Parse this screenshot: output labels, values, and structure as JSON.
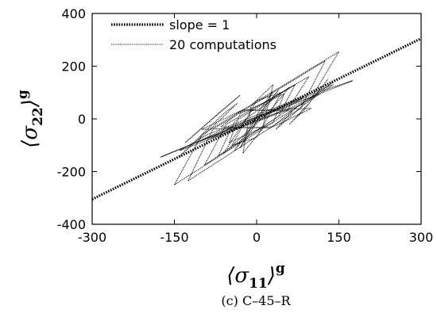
{
  "chart_data": {
    "type": "line",
    "xlabel": {
      "main": "⟨σ",
      "sub": "11",
      "close": "⟩",
      "sup": "g"
    },
    "ylabel": {
      "main": "⟨σ",
      "sub": "22",
      "close": "⟩",
      "sup": "g"
    },
    "xlim": [
      -300,
      300
    ],
    "ylim": [
      -400,
      400
    ],
    "xticks": [
      "-300",
      "-150",
      "0",
      "150",
      "300"
    ],
    "yticks": [
      "-400",
      "-200",
      "0",
      "200",
      "400"
    ],
    "xtick_values": [
      -300,
      -150,
      0,
      150,
      300
    ],
    "ytick_values": [
      -400,
      -200,
      0,
      200,
      400
    ],
    "grid": false,
    "legend_position": "top-left",
    "caption": "(c) C–45–R",
    "series": [
      {
        "name": "slope = 1",
        "style": "thick-dotted",
        "x": [
          -300,
          300
        ],
        "y": [
          -305,
          305
        ]
      },
      {
        "name": "20 computations",
        "style": "thin-dotted",
        "loops": [
          {
            "x": [
              -150,
              -100,
              150,
              100,
              -150
            ],
            "y": [
              -250,
              -60,
              255,
              80,
              -250
            ]
          },
          {
            "x": [
              -175,
              -110,
              175,
              110,
              -175
            ],
            "y": [
              -145,
              -90,
              145,
              100,
              -145
            ]
          },
          {
            "x": [
              -125,
              -80,
              125,
              80,
              -125
            ],
            "y": [
              -235,
              -40,
              220,
              40,
              -235
            ]
          },
          {
            "x": [
              -95,
              -55,
              95,
              55,
              -95
            ],
            "y": [
              -175,
              -20,
              160,
              30,
              -175
            ]
          },
          {
            "x": [
              -70,
              -40,
              70,
              40,
              -70
            ],
            "y": [
              -140,
              -10,
              130,
              10,
              -140
            ]
          },
          {
            "x": [
              -60,
              -20,
              60,
              20,
              -60
            ],
            "y": [
              -130,
              0,
              120,
              20,
              -130
            ]
          },
          {
            "x": [
              -40,
              -10,
              40,
              10,
              -40
            ],
            "y": [
              -120,
              -20,
              110,
              20,
              -120
            ]
          },
          {
            "x": [
              -30,
              -5,
              30,
              5,
              -30
            ],
            "y": [
              -110,
              -30,
              105,
              30,
              -110
            ]
          },
          {
            "x": [
              -140,
              -90,
              140,
              90,
              -140
            ],
            "y": [
              -120,
              -60,
              130,
              60,
              -120
            ]
          },
          {
            "x": [
              -110,
              -60,
              115,
              60,
              -110
            ],
            "y": [
              -90,
              -40,
              95,
              40,
              -90
            ]
          },
          {
            "x": [
              -85,
              -40,
              85,
              40,
              -85
            ],
            "y": [
              -75,
              -25,
              80,
              25,
              -75
            ]
          },
          {
            "x": [
              -140,
              -60,
              -35,
              -85,
              -140
            ],
            "y": [
              -140,
              20,
              60,
              -40,
              -140
            ]
          },
          {
            "x": [
              -130,
              -75,
              -30,
              -70,
              -130
            ],
            "y": [
              -90,
              10,
              90,
              20,
              -90
            ]
          },
          {
            "x": [
              35,
              70,
              140,
              90,
              35
            ],
            "y": [
              -40,
              40,
              140,
              60,
              -40
            ]
          },
          {
            "x": [
              60,
              100,
              130,
              85,
              60
            ],
            "y": [
              -20,
              70,
              150,
              30,
              -20
            ]
          },
          {
            "x": [
              -50,
              -30,
              50,
              30,
              -50
            ],
            "y": [
              -90,
              20,
              95,
              -15,
              -90
            ]
          },
          {
            "x": [
              -25,
              -10,
              30,
              10,
              -25
            ],
            "y": [
              -130,
              50,
              130,
              -40,
              -130
            ]
          },
          {
            "x": [
              -100,
              -30,
              100,
              30,
              -100
            ],
            "y": [
              -40,
              30,
              40,
              -30,
              -40
            ]
          },
          {
            "x": [
              -65,
              -25,
              65,
              25,
              -65
            ],
            "y": [
              -30,
              35,
              30,
              -35,
              -30
            ]
          },
          {
            "x": [
              -45,
              0,
              45,
              0,
              -45
            ],
            "y": [
              -100,
              70,
              100,
              -70,
              -100
            ]
          }
        ]
      }
    ]
  }
}
